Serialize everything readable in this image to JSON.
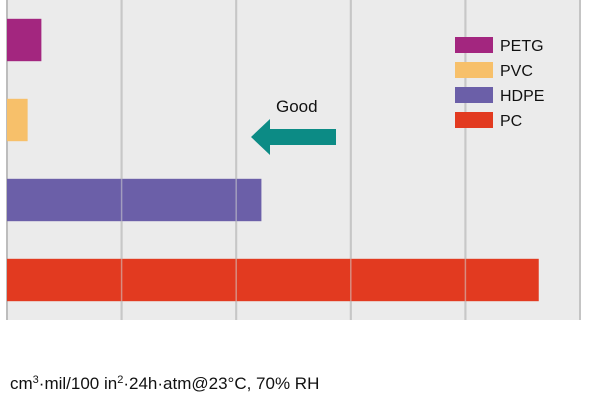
{
  "chart_data": {
    "type": "bar",
    "orientation": "horizontal",
    "categories": [
      "PETG",
      "PVC",
      "HDPE",
      "PC"
    ],
    "values": [
      15,
      9,
      111,
      232
    ],
    "colors": [
      "#A3267F",
      "#F7C06A",
      "#6B5FA8",
      "#E23A20"
    ],
    "xlim": [
      0,
      250
    ],
    "xticks": [
      0,
      50,
      100,
      150,
      200,
      250
    ],
    "grid": true,
    "background": "#EBEBEB",
    "legend": {
      "placement": "top-right",
      "entries": [
        "PETG",
        "PVC",
        "HDPE",
        "PC"
      ]
    },
    "annotation": {
      "text": "Good",
      "arrow_direction": "left",
      "arrow_color": "#0C8B85"
    },
    "xlabel": {
      "p1": "cm",
      "sup1": "3",
      "p2": "·mil/100 in",
      "sup2": "2",
      "p3": "·24h·atm@23°C, 70% RH"
    }
  }
}
